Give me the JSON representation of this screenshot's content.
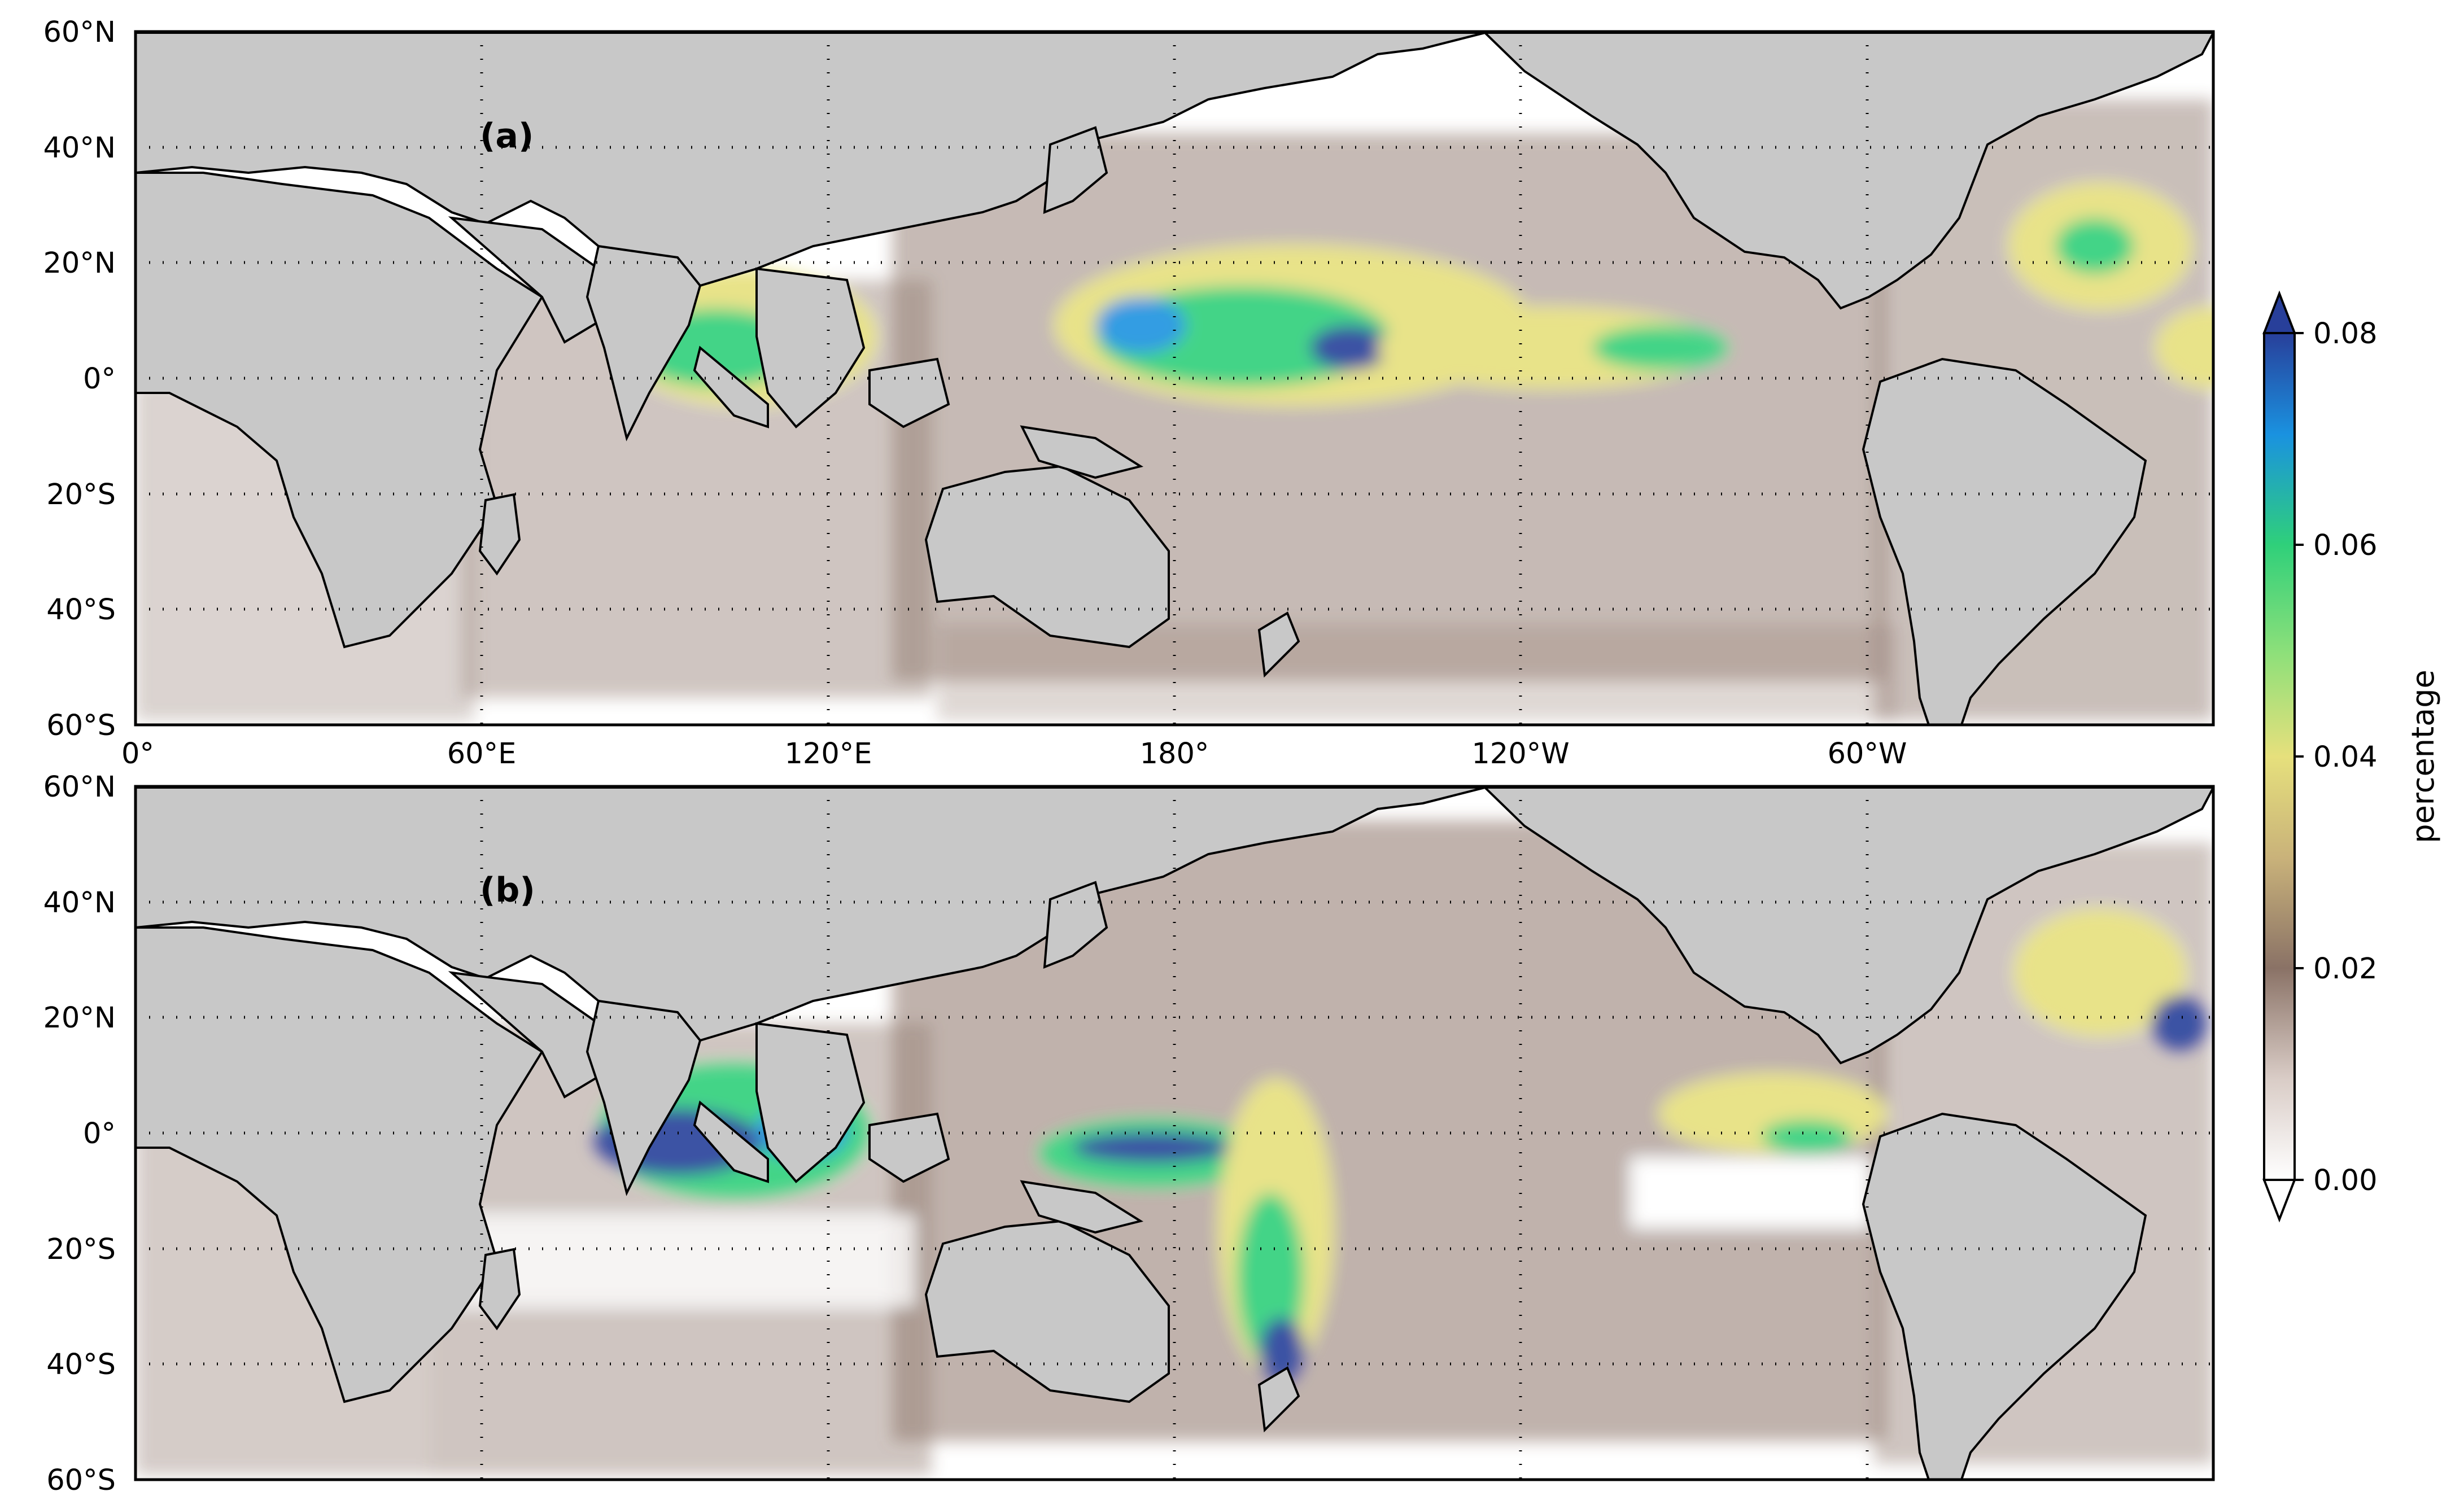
{
  "figure": {
    "colorbar": {
      "label": "percentage",
      "ticks": [
        "0.00",
        "0.02",
        "0.04",
        "0.06",
        "0.08"
      ],
      "range": [
        0.0,
        0.08
      ],
      "extend": "both",
      "colors": [
        "#ffffff",
        "#8a7266",
        "#e6e07c",
        "#2fd07a",
        "#1a92e0",
        "#283f9a"
      ]
    },
    "map": {
      "land_color": "#c8c8c8",
      "coastline_color": "#000000",
      "grid_style": "dotted",
      "lon_range": [
        0,
        360
      ],
      "lat_range": [
        -60,
        60
      ],
      "lat_ticks": [
        "60°N",
        "40°N",
        "20°N",
        "0°",
        "20°S",
        "40°S",
        "60°S"
      ],
      "lon_ticks": [
        "0°",
        "60°E",
        "120°E",
        "180°",
        "120°W",
        "60°W"
      ]
    },
    "panels": [
      {
        "label": "(a)"
      },
      {
        "label": "(b)"
      }
    ]
  }
}
